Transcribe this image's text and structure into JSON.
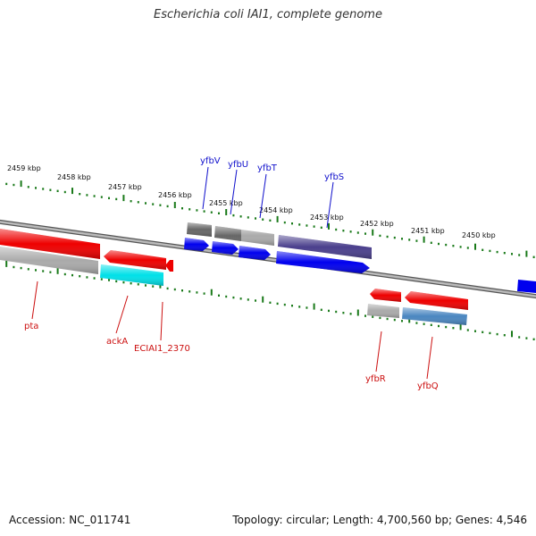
{
  "title": "Escherichia coli IAI1, complete genome",
  "footer": {
    "accession": "Accession: NC_011741",
    "topology": "Topology: circular; Length: 4,700,560 bp; Genes: 4,546"
  },
  "colors": {
    "backbone": "#888888",
    "ticks": "#1a7a1a",
    "forward_label": "#1111cc",
    "reverse_label": "#cc1111",
    "red": "#ee0000",
    "blue": "#0000ee",
    "gray": "#aaaaaa",
    "darkgray": "#666666",
    "cyan": "#00e0e8",
    "navy": "#4a3f8c",
    "steel": "#4a86c0"
  },
  "scale_labels": [
    "2459 kbp",
    "2458 kbp",
    "2457 kbp",
    "2456 kbp",
    "2455 kbp",
    "2454 kbp",
    "2453 kbp",
    "2452 kbp",
    "2451 kbp",
    "2450 kbp"
  ],
  "forward_genes": [
    {
      "name": "yfbV",
      "color": "darkgray"
    },
    {
      "name": "yfbU",
      "color": "darkgray"
    },
    {
      "name": "yfbT",
      "color": "gray"
    },
    {
      "name": "yfbS",
      "color": "navy"
    }
  ],
  "reverse_genes": [
    {
      "name": "pta",
      "color": "red"
    },
    {
      "name": "ackA",
      "color": "red"
    },
    {
      "name": "ECIAI1_2370",
      "color": "red"
    },
    {
      "name": "yfbR",
      "color": "red"
    },
    {
      "name": "yfbQ",
      "color": "red"
    }
  ]
}
